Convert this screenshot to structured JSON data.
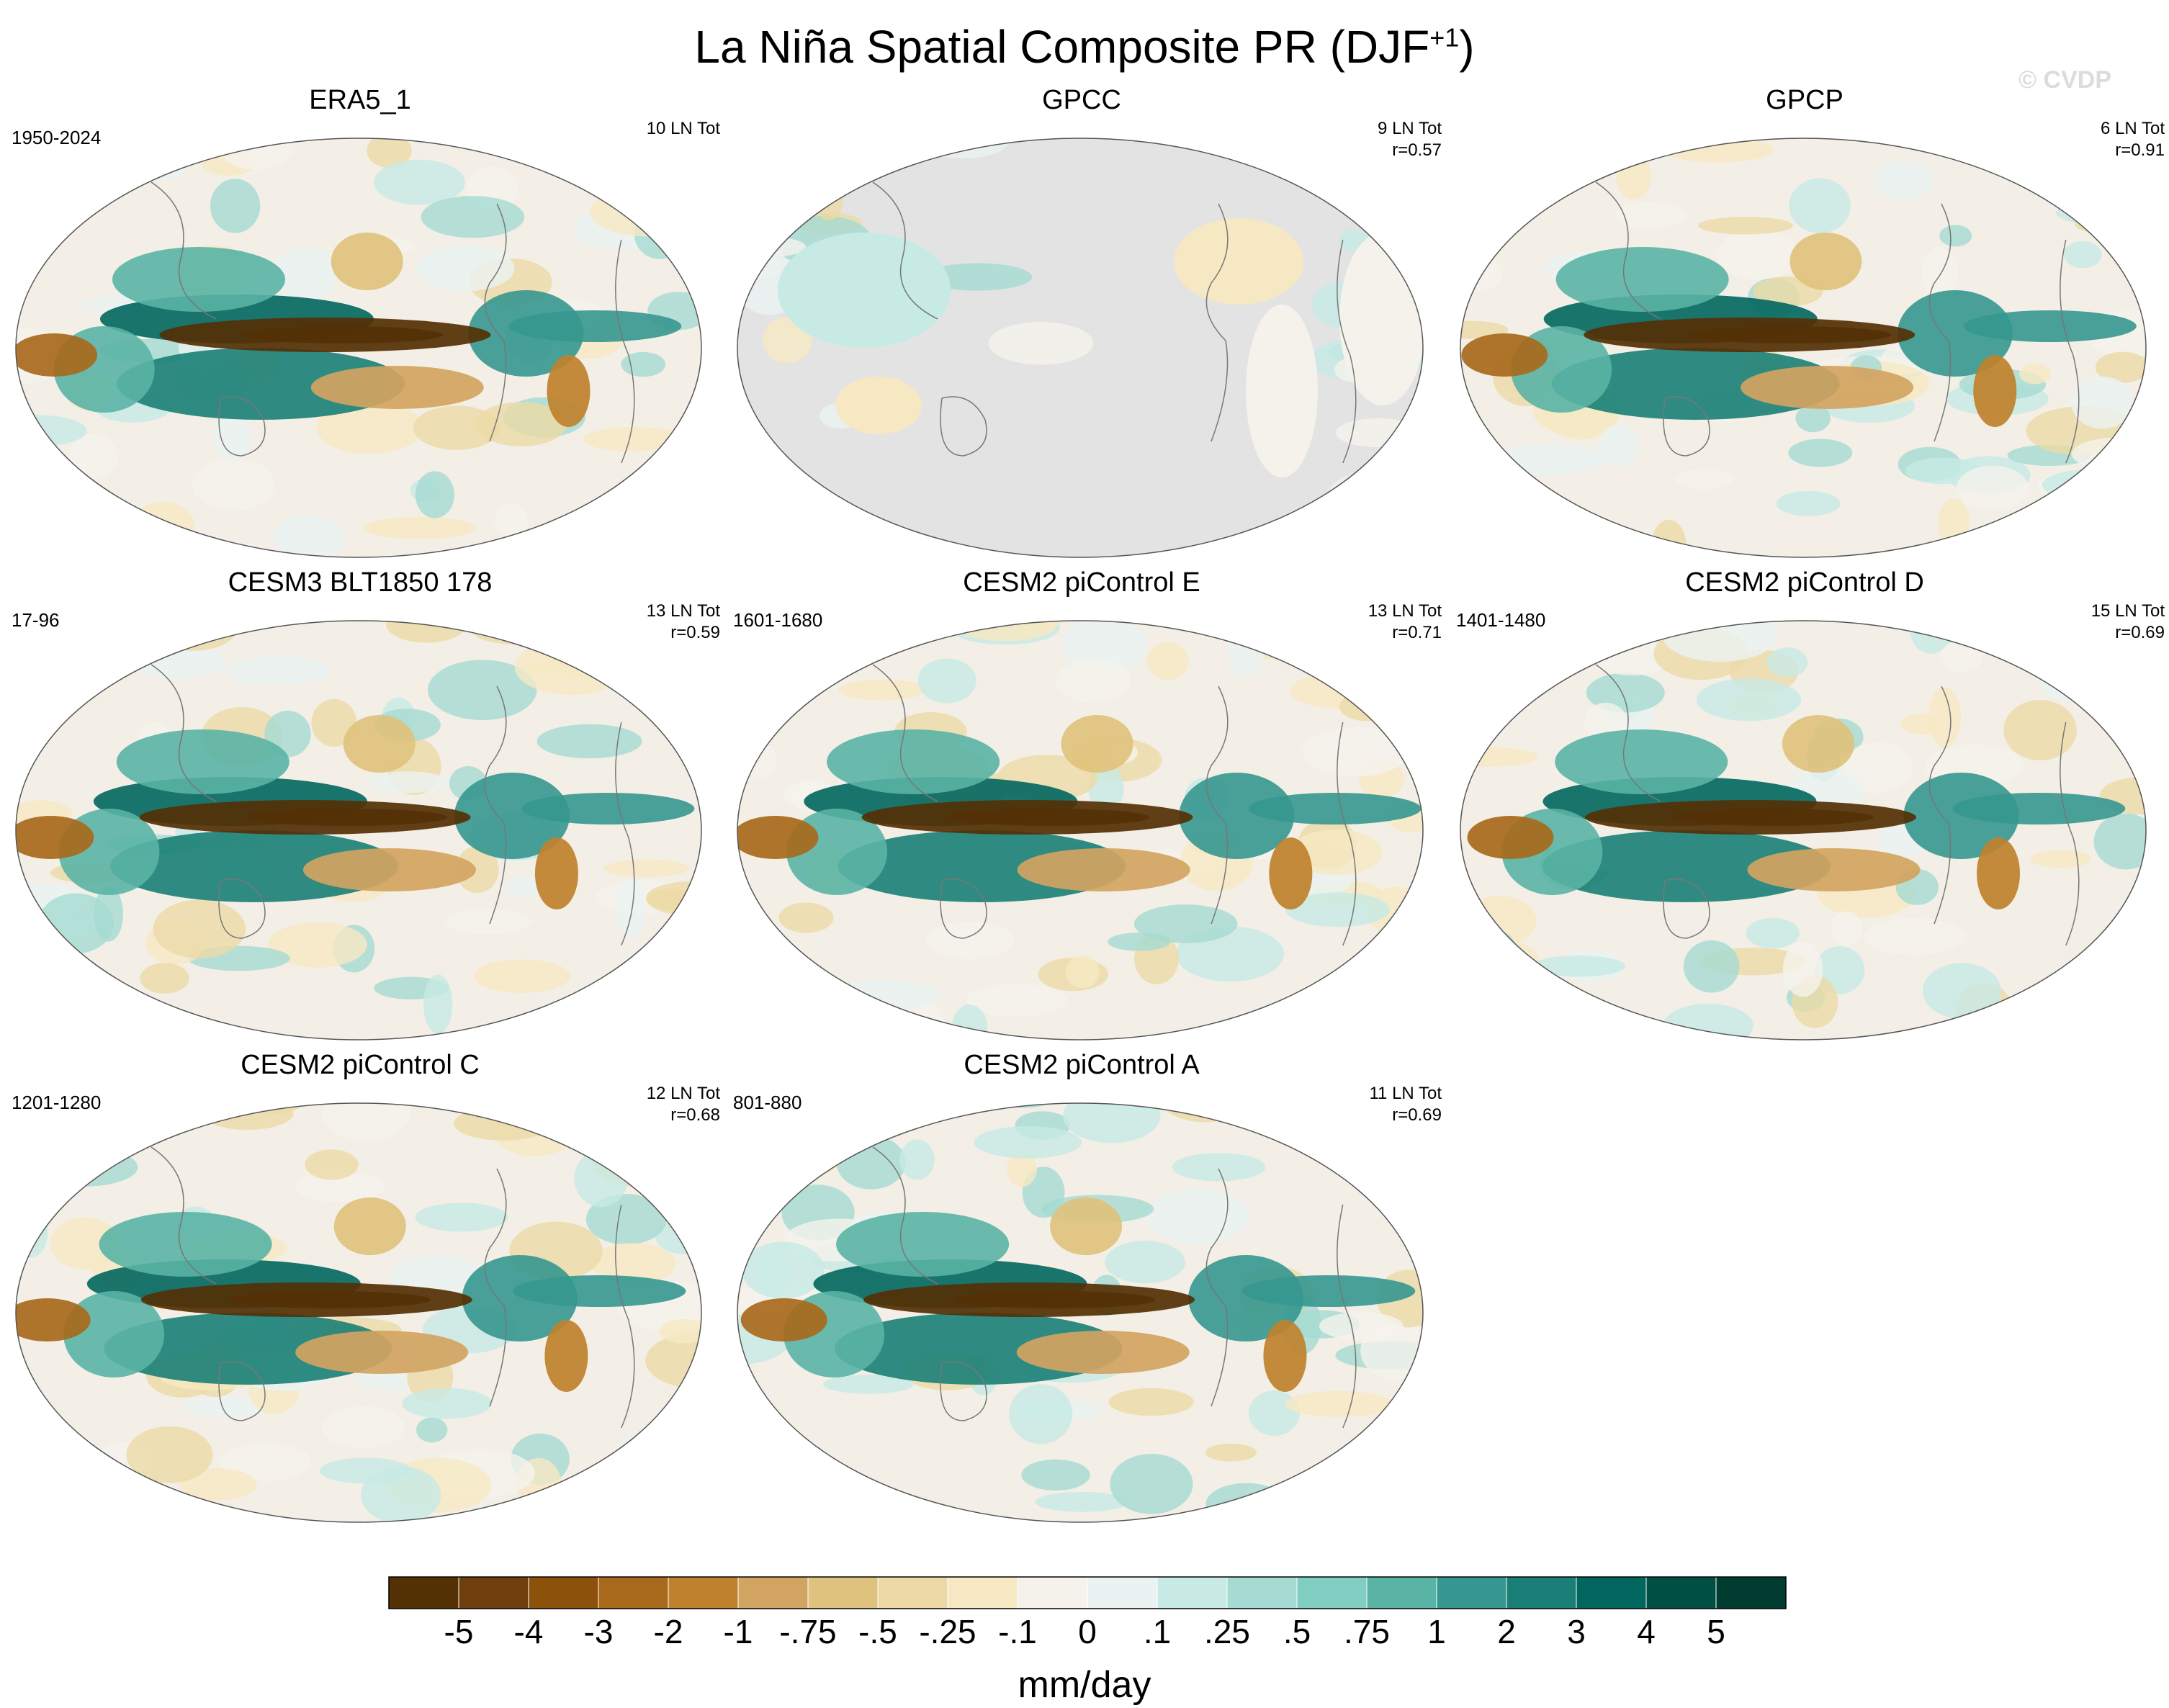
{
  "title": "La Niña Spatial Composite PR (DJF",
  "title_sup": "+1",
  "title_close": ")",
  "watermark": "© CVDP",
  "panels": [
    {
      "title": "ERA5_1",
      "years": "1950-2024",
      "count": "10 LN Tot",
      "r": "",
      "masked": false,
      "seed": 3
    },
    {
      "title": "GPCC",
      "years": "",
      "count": "9 LN Tot",
      "r": "r=0.57",
      "masked": true,
      "seed": 7
    },
    {
      "title": "GPCP",
      "years": "",
      "count": "6 LN Tot",
      "r": "r=0.91",
      "masked": false,
      "seed": 11
    },
    {
      "title": "CESM3 BLT1850 178",
      "years": "17-96",
      "count": "13 LN Tot",
      "r": "r=0.59",
      "masked": false,
      "seed": 13
    },
    {
      "title": "CESM2 piControl E",
      "years": "1601-1680",
      "count": "13 LN Tot",
      "r": "r=0.71",
      "masked": false,
      "seed": 17
    },
    {
      "title": "CESM2 piControl D",
      "years": "1401-1480",
      "count": "15 LN Tot",
      "r": "r=0.69",
      "masked": false,
      "seed": 19
    },
    {
      "title": "CESM2 piControl C",
      "years": "1201-1280",
      "count": "12 LN Tot",
      "r": "r=0.68",
      "masked": false,
      "seed": 23
    },
    {
      "title": "CESM2 piControl A",
      "years": "801-880",
      "count": "11 LN Tot",
      "r": "r=0.69",
      "masked": false,
      "seed": 29
    }
  ],
  "chart_data": {
    "type": "heatmap",
    "projection": "Robinson (Pacific-centered)",
    "variable": "PR",
    "units": "mm/day",
    "colorbar_labels": [
      "-5",
      "-4",
      "-3",
      "-2",
      "-1",
      "-.75",
      "-.5",
      "-.25",
      "-.1",
      "0",
      ".1",
      ".25",
      ".5",
      ".75",
      "1",
      "2",
      "3",
      "4",
      "5"
    ],
    "colorbar_colors": [
      "#543005",
      "#6e3f0c",
      "#8c510a",
      "#a8691c",
      "#bf812d",
      "#d2a461",
      "#dfc27d",
      "#ecd9a6",
      "#f6e8c3",
      "#f5f2ec",
      "#eaf3f1",
      "#c7eae5",
      "#a5dbd2",
      "#80cdc1",
      "#5ab4a5",
      "#35978f",
      "#1a7f76",
      "#01665e",
      "#004f45",
      "#003c30"
    ],
    "colorbar_label": "mm/day"
  }
}
